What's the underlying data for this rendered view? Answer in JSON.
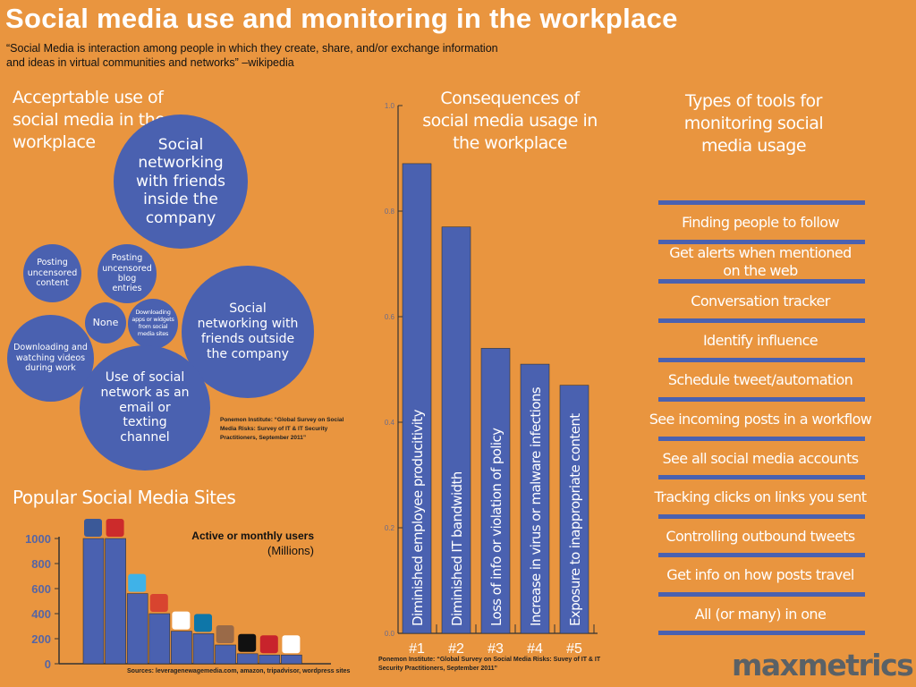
{
  "title": "Social media use and monitoring in the workplace",
  "quote": "“Social Media is interaction among people in which they create, share, and/or exchange information and ideas in virtual communities and networks” –wikipedia",
  "colors": {
    "background": "#E9953F",
    "accent": "#4A61B0",
    "text": "#FFFFFF"
  },
  "acceptable_use": {
    "heading": "Acceprtable use of social media in the workplace",
    "bubbles": [
      "Social networking with friends inside the company",
      "Posting uncensored content",
      "Posting uncensored blog entries",
      "None",
      "Downloading apps or widgets from social media sites",
      "Social networking with friends outside the company",
      "Downloading and watching videos during work",
      "Use of social network as an email or texting channel"
    ],
    "source": "Ponemon Institute: “Global Survey on Social Media Risks: Survey of IT & IT Security Practitioners, September 2011”"
  },
  "chart_data": [
    {
      "type": "bar",
      "title": "Popular Social Media Sites",
      "annotation": "Active or monthly users",
      "unit": "(Millions)",
      "categories": [
        "facebook",
        "youtube",
        "twitter",
        "google-plus",
        "tripadvisor",
        "linkedin",
        "instagram",
        "amazon",
        "pinterest",
        "wordpress"
      ],
      "values": [
        1000,
        1000,
        560,
        400,
        260,
        240,
        150,
        80,
        70,
        70
      ],
      "ylim": [
        0,
        1000
      ],
      "yticks": [
        "0",
        "200",
        "400",
        "600",
        "800",
        "1000"
      ],
      "icon_colors": [
        "#3b5998",
        "#cc2b2b",
        "#3fb2e8",
        "#d8442f",
        "#ffffff",
        "#0e76a8",
        "#9a6a48",
        "#111111",
        "#c8232c",
        "#ffffff"
      ],
      "source": "Sources: leveragenewagemedia.com, amazon, tripadvisor, wordpress sites"
    },
    {
      "type": "bar",
      "title": "Consequences of social media usage in the workplace",
      "categories": [
        "#1",
        "#2",
        "#3",
        "#4",
        "#5"
      ],
      "bar_labels": [
        "Diminished employee producitivity",
        "Diminished IT bandwidth",
        "Loss of info or violation of policy",
        "Increase in virus or malware infections",
        "Exposure to inappropriate content"
      ],
      "values": [
        0.89,
        0.77,
        0.54,
        0.51,
        0.47
      ],
      "ylim": [
        0,
        1.0
      ],
      "yticks": [
        "0.0",
        "0.2",
        "0.4",
        "0.6",
        "0.8",
        "1.0"
      ],
      "source": "Ponemon Institute: “Global Survey on Social Media Risks: Suvey of IT & IT Security Practitioners, September 2011”"
    }
  ],
  "tools": {
    "heading": "Types of tools for monitoring social media usage",
    "items": [
      "Finding people to follow",
      "Get alerts when  mentioned on the web",
      "Conversation tracker",
      "Identify influence",
      "Schedule tweet/automation",
      "See incoming posts in a workflow",
      "See all social media accounts",
      "Tracking clicks on links you sent",
      "Controlling outbound tweets",
      "Get info on how posts travel",
      "All (or many) in one"
    ]
  },
  "logo": "maxmetrics"
}
